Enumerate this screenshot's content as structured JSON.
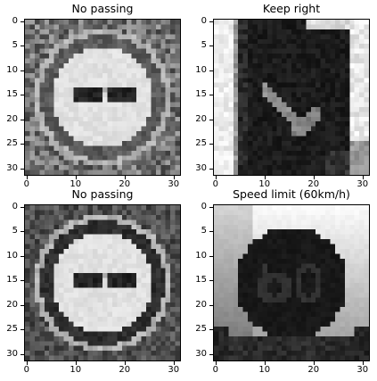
{
  "panels": [
    {
      "title": "No passing",
      "xticks": [
        "0",
        "10",
        "20",
        "30"
      ],
      "yticks": [
        "0",
        "5",
        "10",
        "15",
        "20",
        "25",
        "30"
      ],
      "sign": "no-passing",
      "tone": "mid"
    },
    {
      "title": "Keep right",
      "xticks": [
        "0",
        "10",
        "20",
        "30"
      ],
      "yticks": [
        "0",
        "5",
        "10",
        "15",
        "20",
        "25",
        "30"
      ],
      "sign": "keep-right",
      "tone": "bright"
    },
    {
      "title": "No passing",
      "xticks": [
        "0",
        "10",
        "20",
        "30"
      ],
      "yticks": [
        "0",
        "5",
        "10",
        "15",
        "20",
        "25",
        "30"
      ],
      "sign": "no-passing",
      "tone": "dark"
    },
    {
      "title": "Speed limit (60km/h)",
      "xticks": [
        "0",
        "10",
        "20",
        "30"
      ],
      "yticks": [
        "0",
        "5",
        "10",
        "15",
        "20",
        "25",
        "30"
      ],
      "sign": "speed-60",
      "tone": "bright"
    }
  ],
  "colors": {
    "frame": "#000000",
    "background": "#ffffff"
  }
}
